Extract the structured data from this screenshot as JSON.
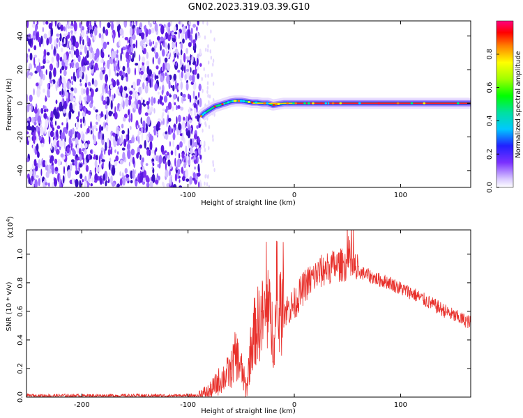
{
  "title": "GN02.2023.319.03.39.G10",
  "chart_data": [
    {
      "type": "heatmap",
      "xlabel": "Height of straight line (km)",
      "ylabel": "Frequency (Hz)",
      "xlim": [
        -252,
        166
      ],
      "ylim": [
        -50,
        49
      ],
      "xticks": [
        -200,
        -100,
        0,
        100
      ],
      "yticks": [
        -40,
        -20,
        0,
        20,
        40
      ],
      "noise_region_x": [
        -252,
        -88
      ],
      "signal_curve": {
        "x": [
          -88,
          -85,
          -80,
          -75,
          -70,
          -65,
          -60,
          -55,
          -50,
          -45,
          -40,
          -35,
          -30,
          -25,
          -20,
          -15,
          -10,
          -5,
          0,
          10,
          20,
          30,
          40,
          60,
          80,
          100,
          120,
          140,
          166
        ],
        "y": [
          -8,
          -6,
          -4,
          -2,
          -1,
          0,
          1,
          1.5,
          1.5,
          1,
          0.5,
          0.5,
          0,
          0,
          -1,
          -0.5,
          0,
          0,
          0,
          0,
          0,
          0,
          0,
          0,
          0,
          0,
          0,
          0,
          0
        ]
      },
      "colorbar": {
        "label": "Normalized spectral amplitude",
        "ticks": [
          "0.0",
          "0.2",
          "0.4",
          "0.6",
          "0.8"
        ],
        "range": [
          0,
          1
        ]
      }
    },
    {
      "type": "line",
      "xlabel": "Height of straight line (km)",
      "ylabel": "SNR (10 * v/v)",
      "y_multiplier": "(x10",
      "y_multiplier_exp": "4",
      "y_multiplier_close": ")",
      "xlim": [
        -252,
        166
      ],
      "ylim": [
        0,
        1.17
      ],
      "xticks": [
        -200,
        -100,
        0,
        100
      ],
      "yticks": [
        "0.0",
        "0.2",
        "0.4",
        "0.6",
        "0.8",
        "1.0"
      ],
      "color": "#e8302b",
      "envelope": {
        "x": [
          -252,
          -90,
          -80,
          -70,
          -60,
          -55,
          -50,
          -45,
          -40,
          -35,
          -30,
          -25,
          -20,
          -15,
          -10,
          -5,
          0,
          10,
          20,
          30,
          40,
          50,
          60,
          70,
          80,
          90,
          100,
          110,
          120,
          130,
          140,
          150,
          166
        ],
        "y": [
          0.01,
          0.01,
          0.03,
          0.12,
          0.18,
          0.3,
          0.2,
          0.05,
          0.4,
          0.5,
          0.55,
          0.6,
          0.45,
          0.55,
          0.6,
          0.62,
          0.65,
          0.78,
          0.85,
          0.9,
          0.92,
          0.93,
          0.88,
          0.85,
          0.82,
          0.8,
          0.76,
          0.73,
          0.69,
          0.65,
          0.61,
          0.57,
          0.52
        ]
      }
    }
  ]
}
